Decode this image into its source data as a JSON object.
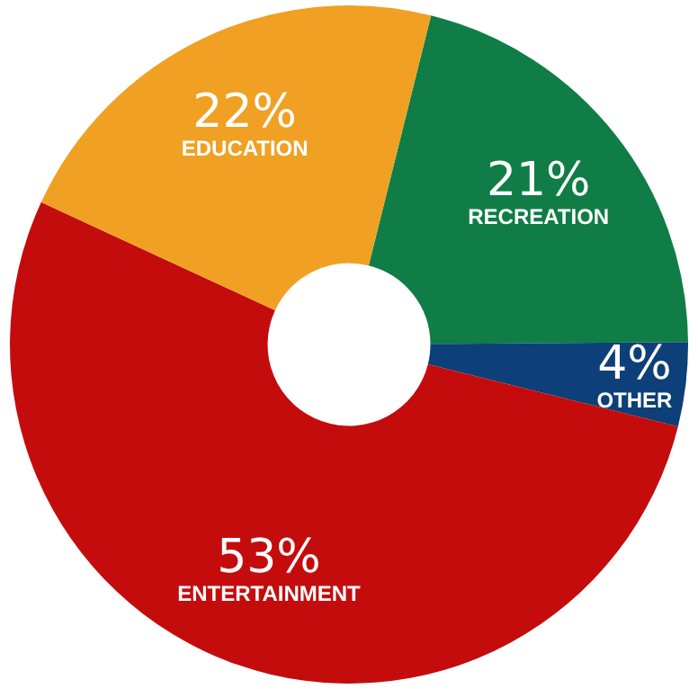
{
  "chart_data": {
    "type": "donut",
    "categories": [
      "RECREATION",
      "OTHER",
      "ENTERTAINMENT",
      "EDUCATION"
    ],
    "values": [
      21,
      4,
      53,
      22
    ],
    "value_labels": [
      "21%",
      "4%",
      "53%",
      "22%"
    ],
    "colors": [
      "#0f7d45",
      "#0d3f78",
      "#c40c0c",
      "#f0a023"
    ],
    "legend": false
  }
}
